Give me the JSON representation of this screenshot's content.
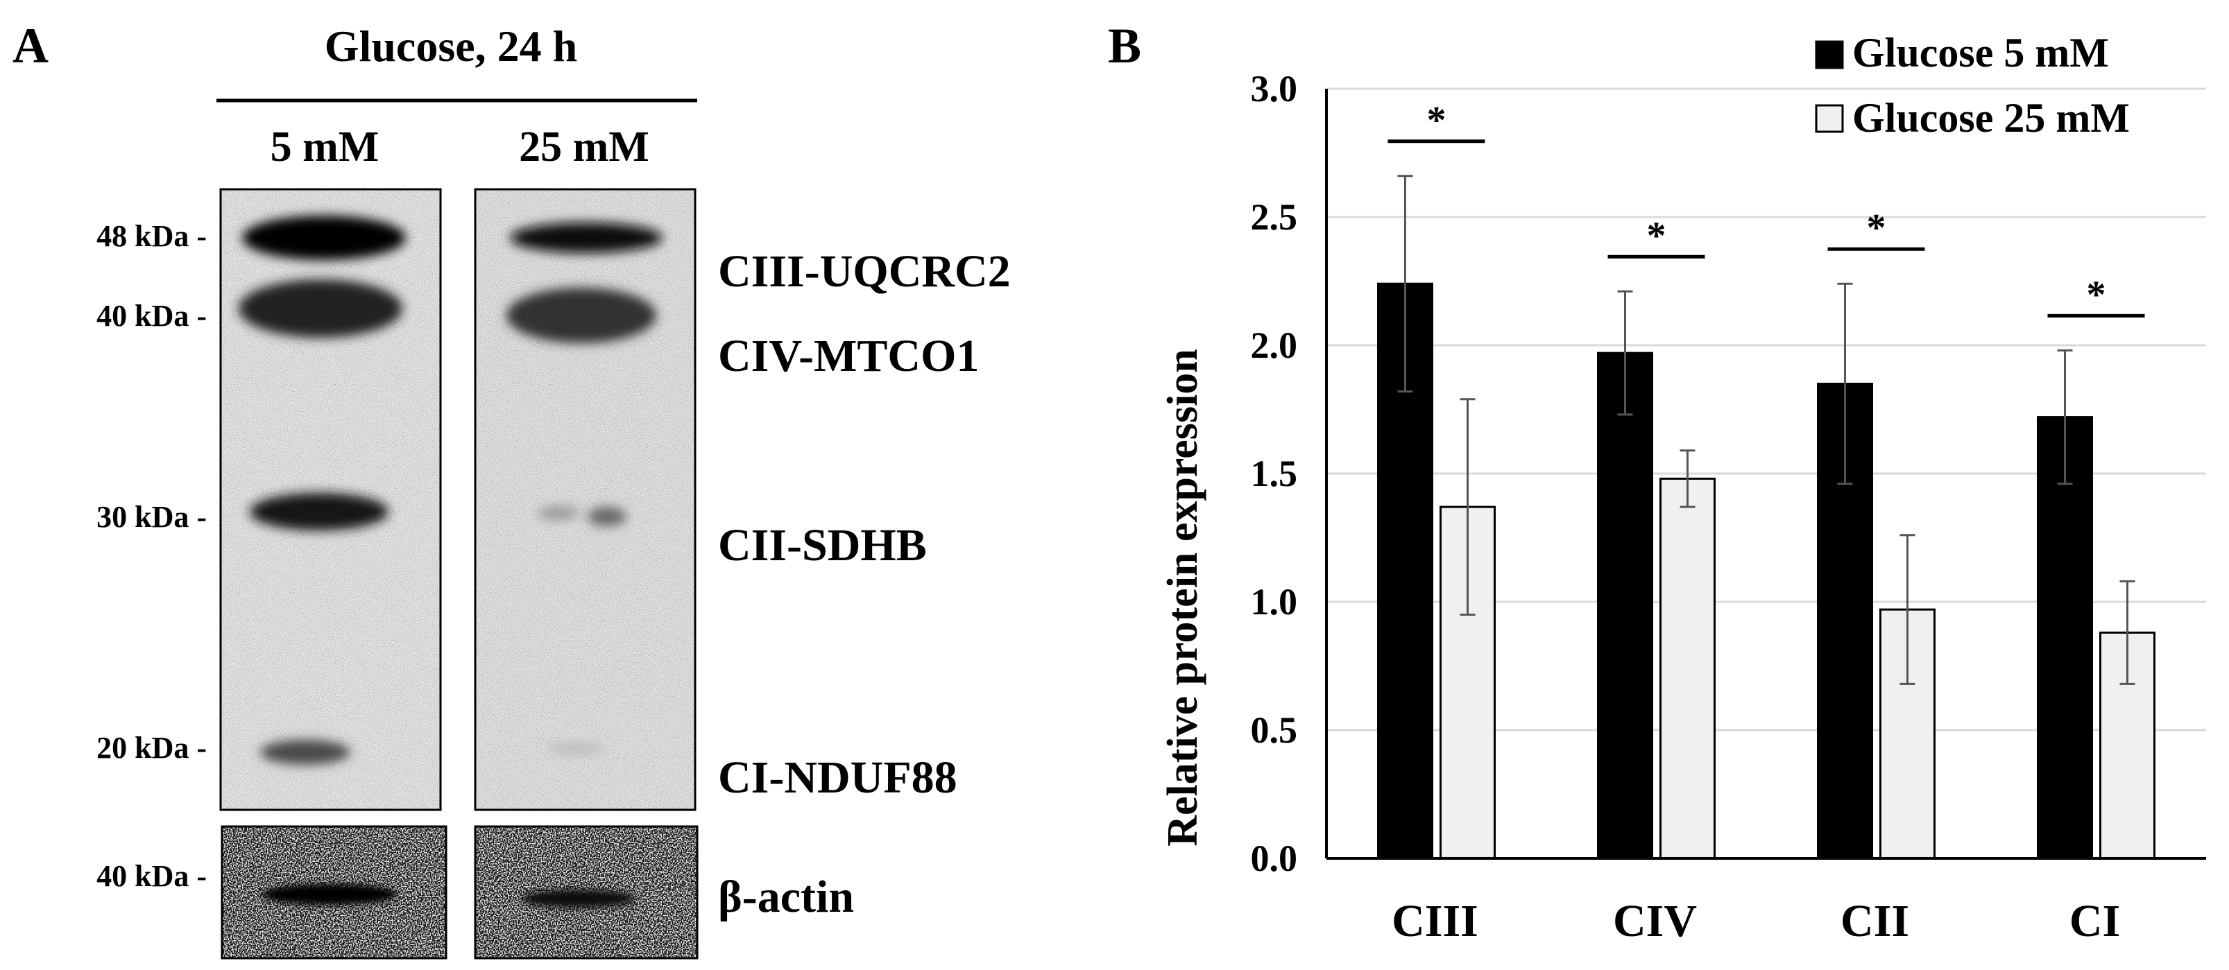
{
  "panel_a": {
    "label": "A",
    "header": "Glucose, 24 h",
    "lanes": [
      "5 mM",
      "25 mM"
    ],
    "markers": [
      "48 kDa -",
      "40 kDa -",
      "30 kDa -",
      "20 kDa -"
    ],
    "loading_marker": "40 kDa -",
    "proteins": [
      "CIII-UQCRC2",
      "CIV-MTCO1",
      "CII-SDHB",
      "CI-NDUF88"
    ],
    "loading_control": "β-actin"
  },
  "panel_b": {
    "label": "B"
  },
  "chart_data": {
    "type": "bar",
    "title": "",
    "xlabel": "",
    "ylabel": "Relative protein expression",
    "categories": [
      "CIII",
      "CIV",
      "CII",
      "CI"
    ],
    "ylim": [
      0,
      3.0
    ],
    "yticks": [
      "0.0",
      "0.5",
      "1.0",
      "1.5",
      "2.0",
      "2.5",
      "3.0"
    ],
    "grid": true,
    "legend_position": "top-right",
    "significance": [
      "*",
      "*",
      "*",
      "*"
    ],
    "series": [
      {
        "name": "Glucose 5 mM",
        "color": "#000000",
        "values": [
          2.24,
          1.97,
          1.85,
          1.72
        ],
        "errors": [
          0.42,
          0.24,
          0.39,
          0.26
        ]
      },
      {
        "name": "Glucose 25 mM",
        "color": "#f0f0f0",
        "values": [
          1.37,
          1.48,
          0.97,
          0.88
        ],
        "errors": [
          0.42,
          0.11,
          0.29,
          0.2
        ]
      }
    ]
  }
}
